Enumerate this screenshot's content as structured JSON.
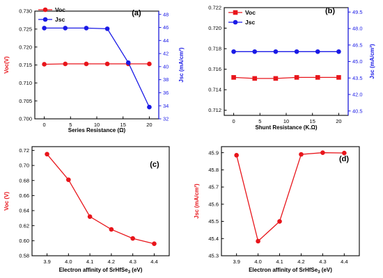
{
  "colors": {
    "red": "#e8151b",
    "blue": "#1a1ae6",
    "black": "#000000"
  },
  "chart_data": [
    {
      "panel": "(a)",
      "type": "line",
      "xlabel": "Series Resistance (Ω)",
      "x": [
        0,
        4,
        8,
        12,
        16,
        20
      ],
      "xticks": [
        "0",
        "5",
        "10",
        "15",
        "20"
      ],
      "xtick_values": [
        0,
        5,
        10,
        15,
        20
      ],
      "xlim": [
        -1.8,
        21.8
      ],
      "left_axis": {
        "label": "Voc(V)",
        "ylim": [
          0.7,
          0.73
        ],
        "ticks": [
          "0.700",
          "0.705",
          "0.710",
          "0.715",
          "0.720",
          "0.725",
          "0.730"
        ],
        "tick_values": [
          0.7,
          0.705,
          0.71,
          0.715,
          0.72,
          0.725,
          0.73
        ]
      },
      "right_axis": {
        "label": "Jsc (mA/cm²)",
        "ylim": [
          32,
          48.5
        ],
        "ticks": [
          "32",
          "34",
          "36",
          "38",
          "40",
          "42",
          "44",
          "46",
          "48"
        ],
        "tick_values": [
          32,
          34,
          36,
          38,
          40,
          42,
          44,
          46,
          48
        ]
      },
      "series": [
        {
          "name": "Voc",
          "axis": "left",
          "color": "#e8151b",
          "marker": "circle",
          "values": [
            0.7152,
            0.7153,
            0.7153,
            0.7153,
            0.7153,
            0.7153
          ]
        },
        {
          "name": "Jsc",
          "axis": "right",
          "color": "#1a1ae6",
          "marker": "circle",
          "values": [
            45.9,
            45.9,
            45.9,
            45.8,
            40.6,
            33.8
          ]
        }
      ],
      "legend": "top-left"
    },
    {
      "panel": "(b)",
      "type": "line",
      "xlabel": "Shunt Resistance (K.Ω)",
      "x": [
        0,
        4,
        8,
        12,
        16,
        20
      ],
      "xticks": [
        "0",
        "5",
        "10",
        "15",
        "20"
      ],
      "xtick_values": [
        0,
        5,
        10,
        15,
        20
      ],
      "xlim": [
        -1.8,
        21.8
      ],
      "left_axis": {
        "label": "",
        "ylim": [
          0.7115,
          0.722
        ],
        "ticks": [
          "0.712",
          "0.714",
          "0.716",
          "0.718",
          "0.720",
          "0.722"
        ],
        "tick_values": [
          0.712,
          0.714,
          0.716,
          0.718,
          0.72,
          0.722
        ]
      },
      "right_axis": {
        "label": "Jsc (mA/cm²)",
        "ylim": [
          40.1,
          49.9
        ],
        "ticks": [
          "40.5",
          "42.0",
          "43.5",
          "45.0",
          "46.5",
          "48.0",
          "49.5"
        ],
        "tick_values": [
          40.5,
          42,
          43.5,
          45,
          46.5,
          48,
          49.5
        ]
      },
      "series": [
        {
          "name": "Voc",
          "axis": "left",
          "color": "#e8151b",
          "marker": "square",
          "values": [
            0.7152,
            0.7151,
            0.7151,
            0.7152,
            0.7152,
            0.7152
          ]
        },
        {
          "name": "Jsc",
          "axis": "right",
          "color": "#1a1ae6",
          "marker": "circle",
          "values": [
            45.9,
            45.9,
            45.9,
            45.9,
            45.9,
            45.9
          ]
        }
      ],
      "legend": "top-left"
    },
    {
      "panel": "(c)",
      "type": "line",
      "xlabel": "Electron  affinity of SrHfSe3 (eV)",
      "ylabel": "Voc (V)",
      "x": [
        3.9,
        4.0,
        4.1,
        4.2,
        4.3,
        4.4
      ],
      "xticks": [
        "3.9",
        "4.0",
        "4.1",
        "4.2",
        "4.3",
        "4.4"
      ],
      "xtick_values": [
        3.9,
        4.0,
        4.1,
        4.2,
        4.3,
        4.4
      ],
      "xlim": [
        3.83,
        4.47
      ],
      "ylim": [
        0.58,
        0.725
      ],
      "yticks": [
        "0.58",
        "0.60",
        "0.62",
        "0.64",
        "0.66",
        "0.68",
        "0.70",
        "0.72"
      ],
      "ytick_values": [
        0.58,
        0.6,
        0.62,
        0.64,
        0.66,
        0.68,
        0.7,
        0.72
      ],
      "series": [
        {
          "name": "",
          "color": "#e8151b",
          "marker": "circle",
          "values": [
            0.715,
            0.681,
            0.632,
            0.615,
            0.603,
            0.596
          ]
        }
      ]
    },
    {
      "panel": "(d)",
      "type": "line",
      "xlabel": "Electron  affinity of SrHfSe3 (eV)",
      "ylabel": "Jsc (mA/cm²)",
      "x": [
        3.9,
        4.0,
        4.1,
        4.2,
        4.3,
        4.4
      ],
      "xticks": [
        "3.9",
        "4.0",
        "4.1",
        "4.2",
        "4.3",
        "4.4"
      ],
      "xtick_values": [
        3.9,
        4.0,
        4.1,
        4.2,
        4.3,
        4.4
      ],
      "xlim": [
        3.83,
        4.47
      ],
      "ylim": [
        45.3,
        45.935
      ],
      "yticks": [
        "45.3",
        "45.4",
        "45.5",
        "45.6",
        "45.7",
        "45.8",
        "45.9"
      ],
      "ytick_values": [
        45.3,
        45.4,
        45.5,
        45.6,
        45.7,
        45.8,
        45.9
      ],
      "series": [
        {
          "name": "",
          "color": "#e8151b",
          "marker": "circle",
          "values": [
            45.885,
            45.385,
            45.5,
            45.89,
            45.9,
            45.898
          ]
        }
      ]
    }
  ]
}
